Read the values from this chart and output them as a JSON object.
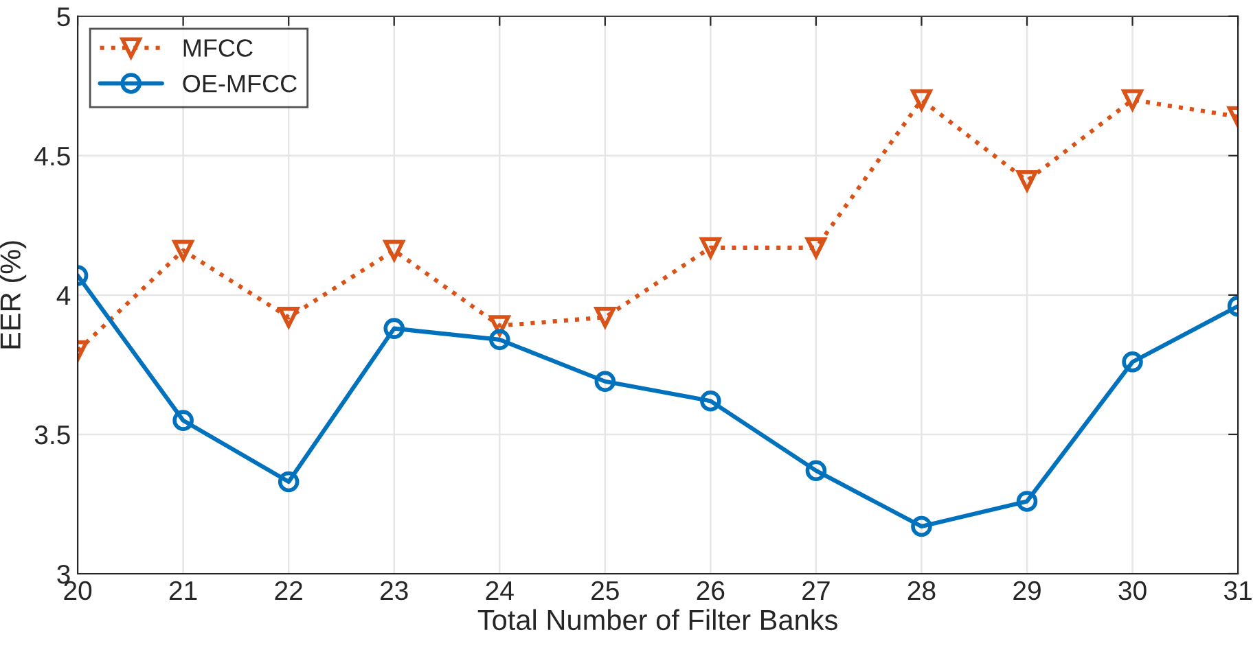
{
  "chart_data": {
    "type": "line",
    "xlabel": "Total Number of Filter Banks",
    "ylabel": "EER (%)",
    "x": [
      20,
      21,
      22,
      23,
      24,
      25,
      26,
      27,
      28,
      29,
      30,
      31
    ],
    "series": [
      {
        "name": "MFCC",
        "color": "#d95319",
        "marker": "triangle",
        "line_style": "dotted",
        "values": [
          3.8,
          4.16,
          3.92,
          4.16,
          3.89,
          3.92,
          4.17,
          4.17,
          4.7,
          4.41,
          4.7,
          4.64
        ]
      },
      {
        "name": "OE-MFCC",
        "color": "#0072bd",
        "marker": "circle",
        "line_style": "solid",
        "values": [
          4.07,
          3.55,
          3.33,
          3.88,
          3.84,
          3.69,
          3.62,
          3.37,
          3.17,
          3.26,
          3.76,
          3.96
        ]
      }
    ],
    "xlim": [
      20,
      31
    ],
    "xticks": [
      20,
      21,
      22,
      23,
      24,
      25,
      26,
      27,
      28,
      29,
      30,
      31
    ],
    "ylim": [
      3,
      5
    ],
    "yticks": [
      3,
      3.5,
      4,
      4.5,
      5
    ],
    "grid": true,
    "legend": "top left"
  }
}
